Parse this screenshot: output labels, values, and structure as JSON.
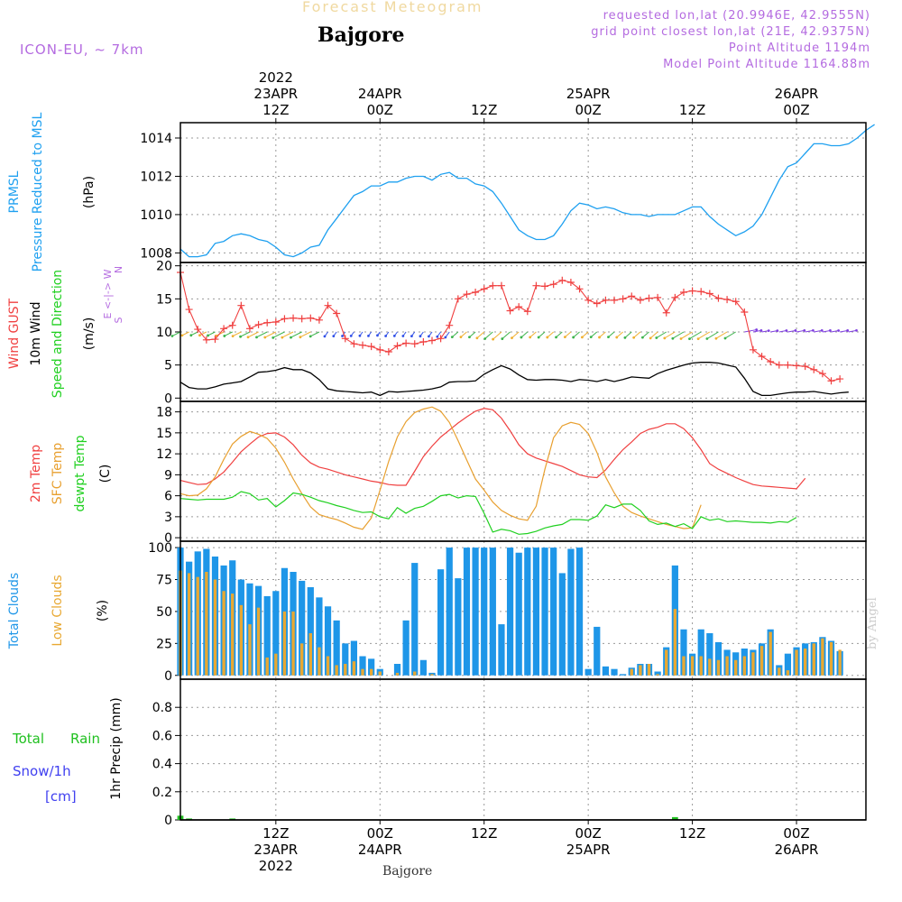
{
  "header": {
    "title": "Forecast Meteogram",
    "place": "Bajgore",
    "model": "ICON-EU, ~ 7km",
    "info_requested": "requested lon,lat (20.9946E, 42.9555N)",
    "info_grid": "grid point closest lon,lat (21E, 42.9375N)",
    "info_point_alt": "Point Altitude 1194m",
    "info_model_alt": "Model Point Altitude 1164.88m",
    "footer": "Bajgore",
    "credit": "by Angel"
  },
  "colors": {
    "pressure": "#1ea0f0",
    "gust": "#f04040",
    "wind": "#000000",
    "temp": "#f04040",
    "sfc": "#e8a030",
    "dew": "#20d020",
    "total_cloud": "#1e96e8",
    "low_cloud": "#e8a832",
    "rain": "#20c020",
    "snow": "#4040f0",
    "dir_label": "#b46be0"
  },
  "chart_data": [
    {
      "type": "line",
      "panel": "pressure",
      "ylabel": [
        "PRMSL",
        "Pressure Reduced to MSL",
        "(hPa)"
      ],
      "ylim": [
        1007.5,
        1014.8
      ],
      "yticks": [
        1008,
        1010,
        1012,
        1014
      ],
      "x_start_hour": 0,
      "x_step_hours": 1,
      "values": [
        1008.2,
        1007.8,
        1007.8,
        1007.9,
        1008.5,
        1008.6,
        1008.9,
        1009.0,
        1008.9,
        1008.7,
        1008.6,
        1008.3,
        1007.9,
        1007.8,
        1008.0,
        1008.3,
        1008.4,
        1009.2,
        1009.8,
        1010.4,
        1011.0,
        1011.2,
        1011.5,
        1011.5,
        1011.7,
        1011.7,
        1011.9,
        1012.0,
        1012.0,
        1011.8,
        1012.1,
        1012.2,
        1011.9,
        1011.9,
        1011.6,
        1011.5,
        1011.2,
        1010.6,
        1009.9,
        1009.2,
        1008.9,
        1008.7,
        1008.7,
        1008.9,
        1009.5,
        1010.2,
        1010.6,
        1010.5,
        1010.3,
        1010.4,
        1010.3,
        1010.1,
        1010.0,
        1010.0,
        1009.9,
        1010.0,
        1010.0,
        1010.0,
        1010.2,
        1010.4,
        1010.4,
        1009.9,
        1009.5,
        1009.2,
        1008.9,
        1009.1,
        1009.4,
        1010.0,
        1010.9,
        1011.8,
        1012.5,
        1012.7,
        1013.2,
        1013.7,
        1013.7,
        1013.6,
        1013.6,
        1013.7,
        1014.0,
        1014.4,
        1014.7
      ]
    },
    {
      "type": "line",
      "panel": "wind",
      "ylabel": [
        "Wind GUST",
        "10m Wind",
        "Speed and Direction",
        "(m/s)"
      ],
      "direction_legend": [
        "N",
        "E <-|-> W",
        "S"
      ],
      "ylim": [
        -0.5,
        20.5
      ],
      "yticks": [
        0,
        5,
        10,
        15,
        20
      ],
      "x_start_hour": 0,
      "x_step_hours": 1,
      "series": [
        {
          "name": "Wind GUST",
          "values": [
            19.0,
            13.4,
            10.4,
            8.8,
            8.9,
            10.5,
            11.0,
            14.0,
            10.5,
            11.1,
            11.4,
            11.5,
            12.0,
            12.1,
            12.0,
            12.1,
            11.8,
            14.0,
            12.8,
            9.0,
            8.2,
            8.0,
            7.8,
            7.3,
            7.0,
            7.9,
            8.3,
            8.2,
            8.5,
            8.7,
            9.0,
            11.0,
            15.0,
            15.7,
            16.0,
            16.5,
            17.0,
            17.0,
            13.2,
            13.8,
            13.1,
            17.0,
            16.9,
            17.2,
            17.8,
            17.5,
            16.5,
            14.8,
            14.3,
            14.8,
            14.8,
            15.0,
            15.4,
            14.8,
            15.1,
            15.2,
            12.9,
            15.2,
            16.0,
            16.2,
            16.1,
            15.8,
            15.1,
            14.9,
            14.6,
            13.0,
            7.3,
            6.3,
            5.5,
            5.0,
            5.0,
            4.9,
            4.8,
            4.3,
            3.7,
            2.6,
            2.9
          ]
        },
        {
          "name": "10m Wind",
          "values": [
            2.4,
            1.6,
            1.4,
            1.4,
            1.7,
            2.1,
            2.3,
            2.5,
            3.2,
            3.9,
            4.0,
            4.2,
            4.6,
            4.3,
            4.3,
            3.8,
            2.8,
            1.4,
            1.1,
            1.0,
            0.9,
            0.8,
            0.9,
            0.4,
            1.0,
            0.9,
            1.0,
            1.1,
            1.2,
            1.4,
            1.7,
            2.4,
            2.5,
            2.5,
            2.6,
            3.6,
            4.3,
            4.9,
            4.4,
            3.5,
            2.8,
            2.7,
            2.8,
            2.8,
            2.7,
            2.5,
            2.8,
            2.7,
            2.5,
            2.8,
            2.5,
            2.8,
            3.2,
            3.1,
            3.0,
            3.7,
            4.2,
            4.6,
            5.0,
            5.3,
            5.4,
            5.4,
            5.3,
            5.0,
            4.7,
            3.0,
            1.0,
            0.4,
            0.4,
            0.6,
            0.8,
            0.9,
            0.9,
            1.0,
            0.8,
            0.6,
            0.8,
            0.9
          ]
        }
      ],
      "arrow_direction_deg": [
        225,
        225,
        225,
        225,
        225,
        225,
        225,
        225,
        225,
        225,
        225,
        225,
        225,
        225,
        225,
        225,
        225,
        250,
        250,
        250,
        250,
        250,
        250,
        250,
        250,
        250,
        250,
        250,
        250,
        250,
        250,
        250,
        240,
        240,
        240,
        240,
        240,
        240,
        240,
        240,
        240,
        240,
        240,
        240,
        240,
        240,
        240,
        240,
        240,
        240,
        240,
        240,
        240,
        240,
        240,
        240,
        230,
        230,
        230,
        230,
        230,
        230,
        230,
        230,
        230,
        20,
        20,
        20,
        20,
        20,
        20,
        20,
        20,
        20,
        20,
        20,
        20,
        20
      ]
    },
    {
      "type": "line",
      "panel": "temperature",
      "ylabel": [
        "2m Temp",
        "SFC Temp",
        "dewpt Temp",
        "(C)"
      ],
      "ylim": [
        -0.5,
        19.5
      ],
      "yticks": [
        0,
        3,
        6,
        9,
        12,
        15,
        18
      ],
      "x_start_hour": 0,
      "x_step_hours": 1,
      "series": [
        {
          "name": "2m Temp",
          "values": [
            8.2,
            7.9,
            7.6,
            7.7,
            8.4,
            9.4,
            10.8,
            12.3,
            13.4,
            14.4,
            14.9,
            15.0,
            14.4,
            13.3,
            11.8,
            10.7,
            10.1,
            9.8,
            9.4,
            9.0,
            8.7,
            8.4,
            8.1,
            7.9,
            7.6,
            7.5,
            7.5,
            9.5,
            11.6,
            13.1,
            14.4,
            15.4,
            16.4,
            17.3,
            18.1,
            18.5,
            18.3,
            17.1,
            15.3,
            13.3,
            12.0,
            11.4,
            11.0,
            10.6,
            10.2,
            9.6,
            9.0,
            8.7,
            8.6,
            9.7,
            11.2,
            12.6,
            13.7,
            14.9,
            15.5,
            15.8,
            16.3,
            16.3,
            15.6,
            14.3,
            12.6,
            10.6,
            9.8,
            9.2,
            8.6,
            8.1,
            7.6,
            7.4,
            7.3,
            7.2,
            7.1,
            7.0,
            8.5
          ]
        },
        {
          "name": "SFC Temp",
          "values": [
            6.3,
            6.0,
            6.1,
            7.0,
            8.7,
            11.2,
            13.4,
            14.5,
            15.2,
            14.8,
            14.2,
            12.8,
            10.8,
            8.4,
            6.3,
            4.4,
            3.3,
            2.9,
            2.6,
            2.1,
            1.5,
            1.2,
            2.8,
            6.8,
            10.9,
            14.4,
            16.6,
            17.9,
            18.4,
            18.7,
            18.1,
            16.5,
            13.9,
            11.1,
            8.4,
            6.8,
            5.1,
            3.9,
            3.2,
            2.7,
            2.5,
            4.5,
            9.8,
            14.3,
            16.0,
            16.5,
            16.2,
            14.9,
            12.2,
            8.7,
            6.4,
            4.5,
            3.6,
            3.1,
            2.7,
            2.3,
            1.9,
            1.6,
            1.3,
            1.4,
            4.7
          ]
        },
        {
          "name": "dewpt Temp",
          "values": [
            5.6,
            5.5,
            5.4,
            5.5,
            5.5,
            5.5,
            5.8,
            6.6,
            6.3,
            5.4,
            5.6,
            4.4,
            5.3,
            6.4,
            6.2,
            5.8,
            5.3,
            5.0,
            4.6,
            4.3,
            3.9,
            3.6,
            3.7,
            3.0,
            2.7,
            4.3,
            3.5,
            4.2,
            4.5,
            5.2,
            6.0,
            6.2,
            5.7,
            6.0,
            5.9,
            3.5,
            0.8,
            1.2,
            1.0,
            0.5,
            0.6,
            0.9,
            1.4,
            1.7,
            1.9,
            2.6,
            2.6,
            2.5,
            3.1,
            4.7,
            4.3,
            4.8,
            4.8,
            3.9,
            2.4,
            1.9,
            2.1,
            1.6,
            2.0,
            1.3,
            3.0,
            2.5,
            2.7,
            2.3,
            2.4,
            2.3,
            2.2,
            2.2,
            2.1,
            2.3,
            2.2,
            2.9
          ]
        }
      ]
    },
    {
      "type": "bar",
      "panel": "clouds",
      "ylabel": [
        "Total Clouds",
        "Low Clouds",
        "(%)"
      ],
      "ylim": [
        -3,
        105
      ],
      "yticks": [
        0,
        25,
        50,
        75,
        100
      ],
      "x_start_hour": 0,
      "x_step_hours": 1,
      "series": [
        {
          "name": "Total Clouds",
          "values": [
            100,
            89,
            97,
            99,
            93,
            86,
            90,
            75,
            72,
            70,
            62,
            66,
            84,
            81,
            74,
            69,
            61,
            54,
            43,
            25,
            27,
            15,
            13,
            5,
            0,
            9,
            43,
            88,
            12,
            2,
            83,
            100,
            76,
            100,
            100,
            100,
            100,
            40,
            100,
            96,
            100,
            100,
            100,
            100,
            80,
            99,
            100,
            5,
            38,
            7,
            5,
            1,
            6,
            9,
            9,
            3,
            22,
            86,
            36,
            17,
            36,
            33,
            26,
            20,
            18,
            21,
            20,
            25,
            36,
            8,
            17,
            22,
            25,
            26,
            30,
            27,
            19
          ]
        },
        {
          "name": "Low Clouds",
          "values": [
            82,
            80,
            77,
            81,
            75,
            66,
            64,
            55,
            40,
            53,
            14,
            17,
            50,
            50,
            25,
            33,
            22,
            15,
            8,
            9,
            11,
            5,
            5,
            3,
            0,
            2,
            0,
            3,
            0,
            1,
            0,
            0,
            0,
            0,
            0,
            0,
            0,
            0,
            0,
            0,
            0,
            0,
            0,
            0,
            0,
            0,
            0,
            0,
            0,
            0,
            0,
            0,
            5,
            8,
            9,
            1,
            20,
            52,
            15,
            15,
            15,
            13,
            12,
            15,
            12,
            15,
            18,
            23,
            34,
            6,
            4,
            20,
            21,
            25,
            29,
            26,
            20
          ]
        }
      ]
    },
    {
      "type": "bar",
      "panel": "precip",
      "ylabel": [
        "1hr Precip (mm)"
      ],
      "legend": [
        "Total",
        "Rain",
        "Snow/1h",
        "[cm]"
      ],
      "ylim": [
        0,
        1.0
      ],
      "yticks": [
        0,
        0.2,
        0.4,
        0.6,
        0.8
      ],
      "ytick_labels": [
        "0",
        "0.2",
        "0.4",
        "0.6",
        "0.8"
      ],
      "x_start_hour": 0,
      "x_step_hours": 1,
      "values": [
        0.03,
        0.01,
        0,
        0,
        0,
        0,
        0.01,
        0,
        0,
        0,
        0,
        0,
        0,
        0,
        0,
        0,
        0,
        0,
        0,
        0,
        0,
        0,
        0,
        0,
        0,
        0,
        0,
        0,
        0,
        0,
        0,
        0,
        0,
        0,
        0,
        0,
        0,
        0,
        0,
        0,
        0,
        0,
        0,
        0,
        0,
        0,
        0,
        0,
        0,
        0,
        0,
        0,
        0,
        0,
        0,
        0,
        0,
        0.02,
        0,
        0,
        0,
        0,
        0,
        0,
        0,
        0,
        0,
        0,
        0,
        0,
        0,
        0,
        0,
        0,
        0,
        0,
        0,
        0
      ]
    },
    {
      "type": "axis",
      "time_hours_offsets": [
        11,
        23,
        35,
        47,
        59,
        71
      ],
      "top_labels": [
        [
          "2022",
          "23APR",
          "12Z"
        ],
        [
          "24APR",
          "00Z"
        ],
        [
          "12Z"
        ],
        [
          "25APR",
          "00Z"
        ],
        [
          "12Z"
        ],
        [
          "26APR",
          "00Z"
        ]
      ],
      "bottom_labels": [
        [
          "12Z",
          "23APR",
          "2022"
        ],
        [
          "00Z",
          "24APR"
        ],
        [
          "12Z"
        ],
        [
          "00Z",
          "25APR"
        ],
        [
          "12Z"
        ],
        [
          "00Z",
          "26APR"
        ]
      ]
    }
  ]
}
